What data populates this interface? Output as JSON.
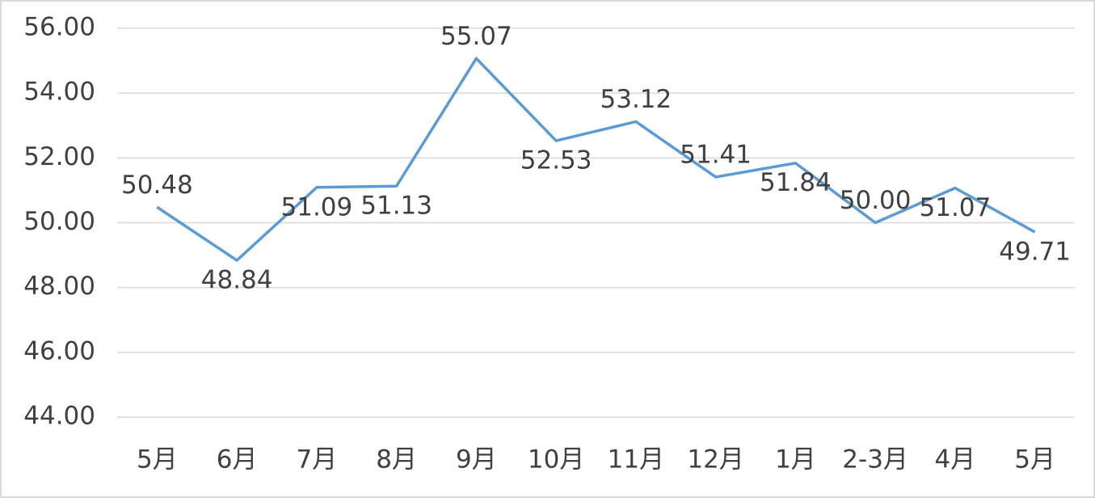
{
  "chart_data": {
    "type": "line",
    "categories": [
      "5月",
      "6月",
      "7月",
      "8月",
      "9月",
      "10月",
      "11月",
      "12月",
      "1月",
      "2-3月",
      "4月",
      "5月"
    ],
    "series": [
      {
        "name": null,
        "color": "#5b9bd5",
        "values": [
          50.48,
          48.84,
          51.09,
          51.13,
          55.07,
          52.53,
          53.12,
          51.41,
          51.84,
          50.0,
          51.07,
          49.71
        ],
        "value_labels": [
          "50.48",
          "48.84",
          "51.09",
          "51.13",
          "55.07",
          "52.53",
          "53.12",
          "51.41",
          "51.84",
          "50.00",
          "51.07",
          "49.71"
        ]
      }
    ],
    "ylim": [
      44,
      56
    ],
    "yticks": [
      {
        "value": 44,
        "label": "44.00"
      },
      {
        "value": 46,
        "label": "46.00"
      },
      {
        "value": 48,
        "label": "48.00"
      },
      {
        "value": 50,
        "label": "50.00"
      },
      {
        "value": 52,
        "label": "52.00"
      },
      {
        "value": 54,
        "label": "54.00"
      },
      {
        "value": 56,
        "label": "56.00"
      }
    ],
    "grid": true
  }
}
